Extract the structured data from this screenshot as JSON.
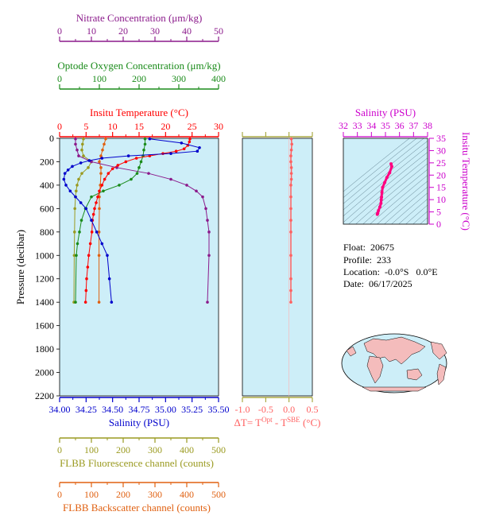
{
  "colors": {
    "nitrate": "#8b1a8b",
    "oxygen": "#1a8b1a",
    "temperature": "#ff0000",
    "salinity": "#0000cc",
    "fluorescence": "#9a9a20",
    "backscatter": "#e06010",
    "delta_t": "#ff6060",
    "ts_axis": "#cc00cc",
    "plot_bg": "#cdeef8",
    "ts_trace": "#ff0080"
  },
  "info": {
    "float_label": "Float:",
    "float_value": "20675",
    "profile_label": "Profile:",
    "profile_value": "233",
    "location_label": "Location:",
    "location_value": "-0.0°S   0.0°E",
    "date_label": "Date:",
    "date_value": "06/17/2025"
  },
  "chart_data": [
    {
      "type": "line",
      "title": "",
      "ylabel": "Pressure (decibar)",
      "ylim": [
        2200,
        0
      ],
      "yticks": [
        "0",
        "200",
        "400",
        "600",
        "800",
        "1000",
        "1200",
        "1400",
        "1600",
        "1800",
        "2000",
        "2200"
      ],
      "axes": {
        "nitrate": {
          "label": "Nitrate Concentration (μm/kg)",
          "xlim": [
            0,
            50
          ],
          "ticks": [
            "0",
            "10",
            "20",
            "30",
            "40",
            "50"
          ]
        },
        "oxygen": {
          "label": "Optode Oxygen Concentration (μm/kg)",
          "xlim": [
            0,
            400
          ],
          "ticks": [
            "0",
            "100",
            "200",
            "300",
            "400"
          ]
        },
        "temperature": {
          "label": "Insitu Temperature (°C)",
          "xlim": [
            0,
            30
          ],
          "ticks": [
            "0",
            "5",
            "10",
            "15",
            "20",
            "25",
            "30"
          ]
        },
        "salinity": {
          "label": "Salinity (PSU)",
          "xlim": [
            34.0,
            35.5
          ],
          "ticks": [
            "34.00",
            "34.25",
            "34.50",
            "34.75",
            "35.00",
            "35.25",
            "35.50"
          ]
        },
        "fluorescence": {
          "label": "FLBB Fluorescence channel (counts)",
          "xlim": [
            0,
            500
          ],
          "ticks": [
            "0",
            "100",
            "200",
            "300",
            "400",
            "500"
          ]
        },
        "backscatter": {
          "label": "FLBB Backscatter channel (counts)",
          "xlim": [
            0,
            500
          ],
          "ticks": [
            "0",
            "100",
            "200",
            "300",
            "400",
            "500"
          ]
        }
      },
      "series": [
        {
          "key": "temperature",
          "x": [
            24.6,
            24.5,
            24.2,
            23.5,
            22,
            19.5,
            17,
            14.5,
            12.5,
            11,
            10,
            9.2,
            8.5,
            8,
            7.5,
            7.2,
            6.9,
            6.6,
            6.4,
            6.2,
            6.1,
            5.8,
            5.5,
            5.3,
            5.1,
            5,
            4.9
          ],
          "y": [
            5,
            30,
            60,
            90,
            110,
            130,
            150,
            170,
            200,
            230,
            260,
            300,
            350,
            400,
            450,
            500,
            550,
            600,
            650,
            700,
            800,
            900,
            1000,
            1100,
            1200,
            1300,
            1400
          ]
        },
        {
          "key": "salinity",
          "x": [
            34.85,
            35.15,
            35.32,
            35.3,
            35.05,
            34.65,
            34.4,
            34.28,
            34.2,
            34.12,
            34.08,
            34.05,
            34.04,
            34.06,
            34.1,
            34.15,
            34.2,
            34.25,
            34.3,
            34.35,
            34.4,
            34.45,
            34.47,
            34.49
          ],
          "y": [
            5,
            40,
            80,
            110,
            130,
            150,
            170,
            190,
            210,
            240,
            270,
            300,
            350,
            400,
            450,
            500,
            550,
            600,
            700,
            800,
            900,
            1000,
            1200,
            1400
          ]
        },
        {
          "key": "oxygen",
          "x": [
            215,
            215,
            212,
            210,
            205,
            200,
            195,
            180,
            150,
            110,
            80,
            65,
            55,
            50,
            45,
            42,
            40
          ],
          "y": [
            5,
            50,
            100,
            150,
            200,
            250,
            300,
            350,
            400,
            450,
            500,
            600,
            700,
            800,
            900,
            1000,
            1400
          ]
        },
        {
          "key": "nitrate",
          "x": [
            5,
            5,
            5.5,
            6,
            10,
            18,
            28,
            35,
            40,
            43,
            45,
            46,
            46.5,
            47,
            47,
            46.5
          ],
          "y": [
            5,
            50,
            100,
            150,
            200,
            250,
            300,
            350,
            400,
            450,
            500,
            600,
            700,
            800,
            1000,
            1400
          ]
        },
        {
          "key": "fluorescence",
          "x": [
            75,
            72,
            70,
            75,
            100,
            90,
            70,
            60,
            55,
            52,
            50,
            48,
            47,
            46,
            45
          ],
          "y": [
            5,
            50,
            100,
            150,
            200,
            250,
            300,
            350,
            400,
            450,
            500,
            600,
            800,
            1000,
            1400
          ]
        },
        {
          "key": "backscatter",
          "x": [
            145,
            140,
            135,
            130,
            125,
            130,
            130,
            128,
            125,
            125,
            124,
            124,
            124
          ],
          "y": [
            5,
            50,
            100,
            150,
            200,
            250,
            300,
            400,
            500,
            600,
            800,
            1000,
            1400
          ]
        }
      ]
    },
    {
      "type": "scatter",
      "title": "",
      "xlabel": "ΔT= T",
      "xlabel_sup1": "Opt",
      "xlabel_mid": " - T",
      "xlabel_sup2": "SBE",
      "xlabel_tail": " (°C)",
      "xlim": [
        -1.0,
        0.5
      ],
      "ylim": [
        2200,
        0
      ],
      "xticks": [
        "-1.0",
        "-0.5",
        "0.0",
        "0.5"
      ],
      "x": [
        0.05,
        0.06,
        0.05,
        0.04,
        0.04,
        0.05,
        0.05,
        0.05,
        0.04,
        0.04,
        0.04,
        0.04,
        0.04,
        0.04,
        0.04,
        0.04,
        0.04
      ],
      "y": [
        5,
        50,
        100,
        150,
        200,
        250,
        300,
        350,
        400,
        500,
        600,
        700,
        800,
        1000,
        1200,
        1300,
        1400
      ]
    },
    {
      "type": "line",
      "title": "",
      "xlabel": "Salinity (PSU)",
      "ylabel": "Insitu Temperature (°C)",
      "xlim": [
        32,
        38
      ],
      "ylim": [
        0,
        35
      ],
      "xticks": [
        "32",
        "33",
        "34",
        "35",
        "36",
        "37",
        "38"
      ],
      "yticks": [
        "0",
        "5",
        "10",
        "15",
        "20",
        "25",
        "30",
        "35"
      ],
      "x": [
        35.4,
        35.45,
        35.3,
        35.1,
        34.95,
        34.8,
        34.75,
        34.72,
        34.7,
        34.68,
        34.6,
        34.5,
        34.45,
        34.42
      ],
      "y": [
        24.6,
        23.5,
        21,
        19,
        17,
        15,
        13,
        11,
        10,
        8.5,
        7,
        5.5,
        4.5,
        4.0
      ]
    }
  ]
}
